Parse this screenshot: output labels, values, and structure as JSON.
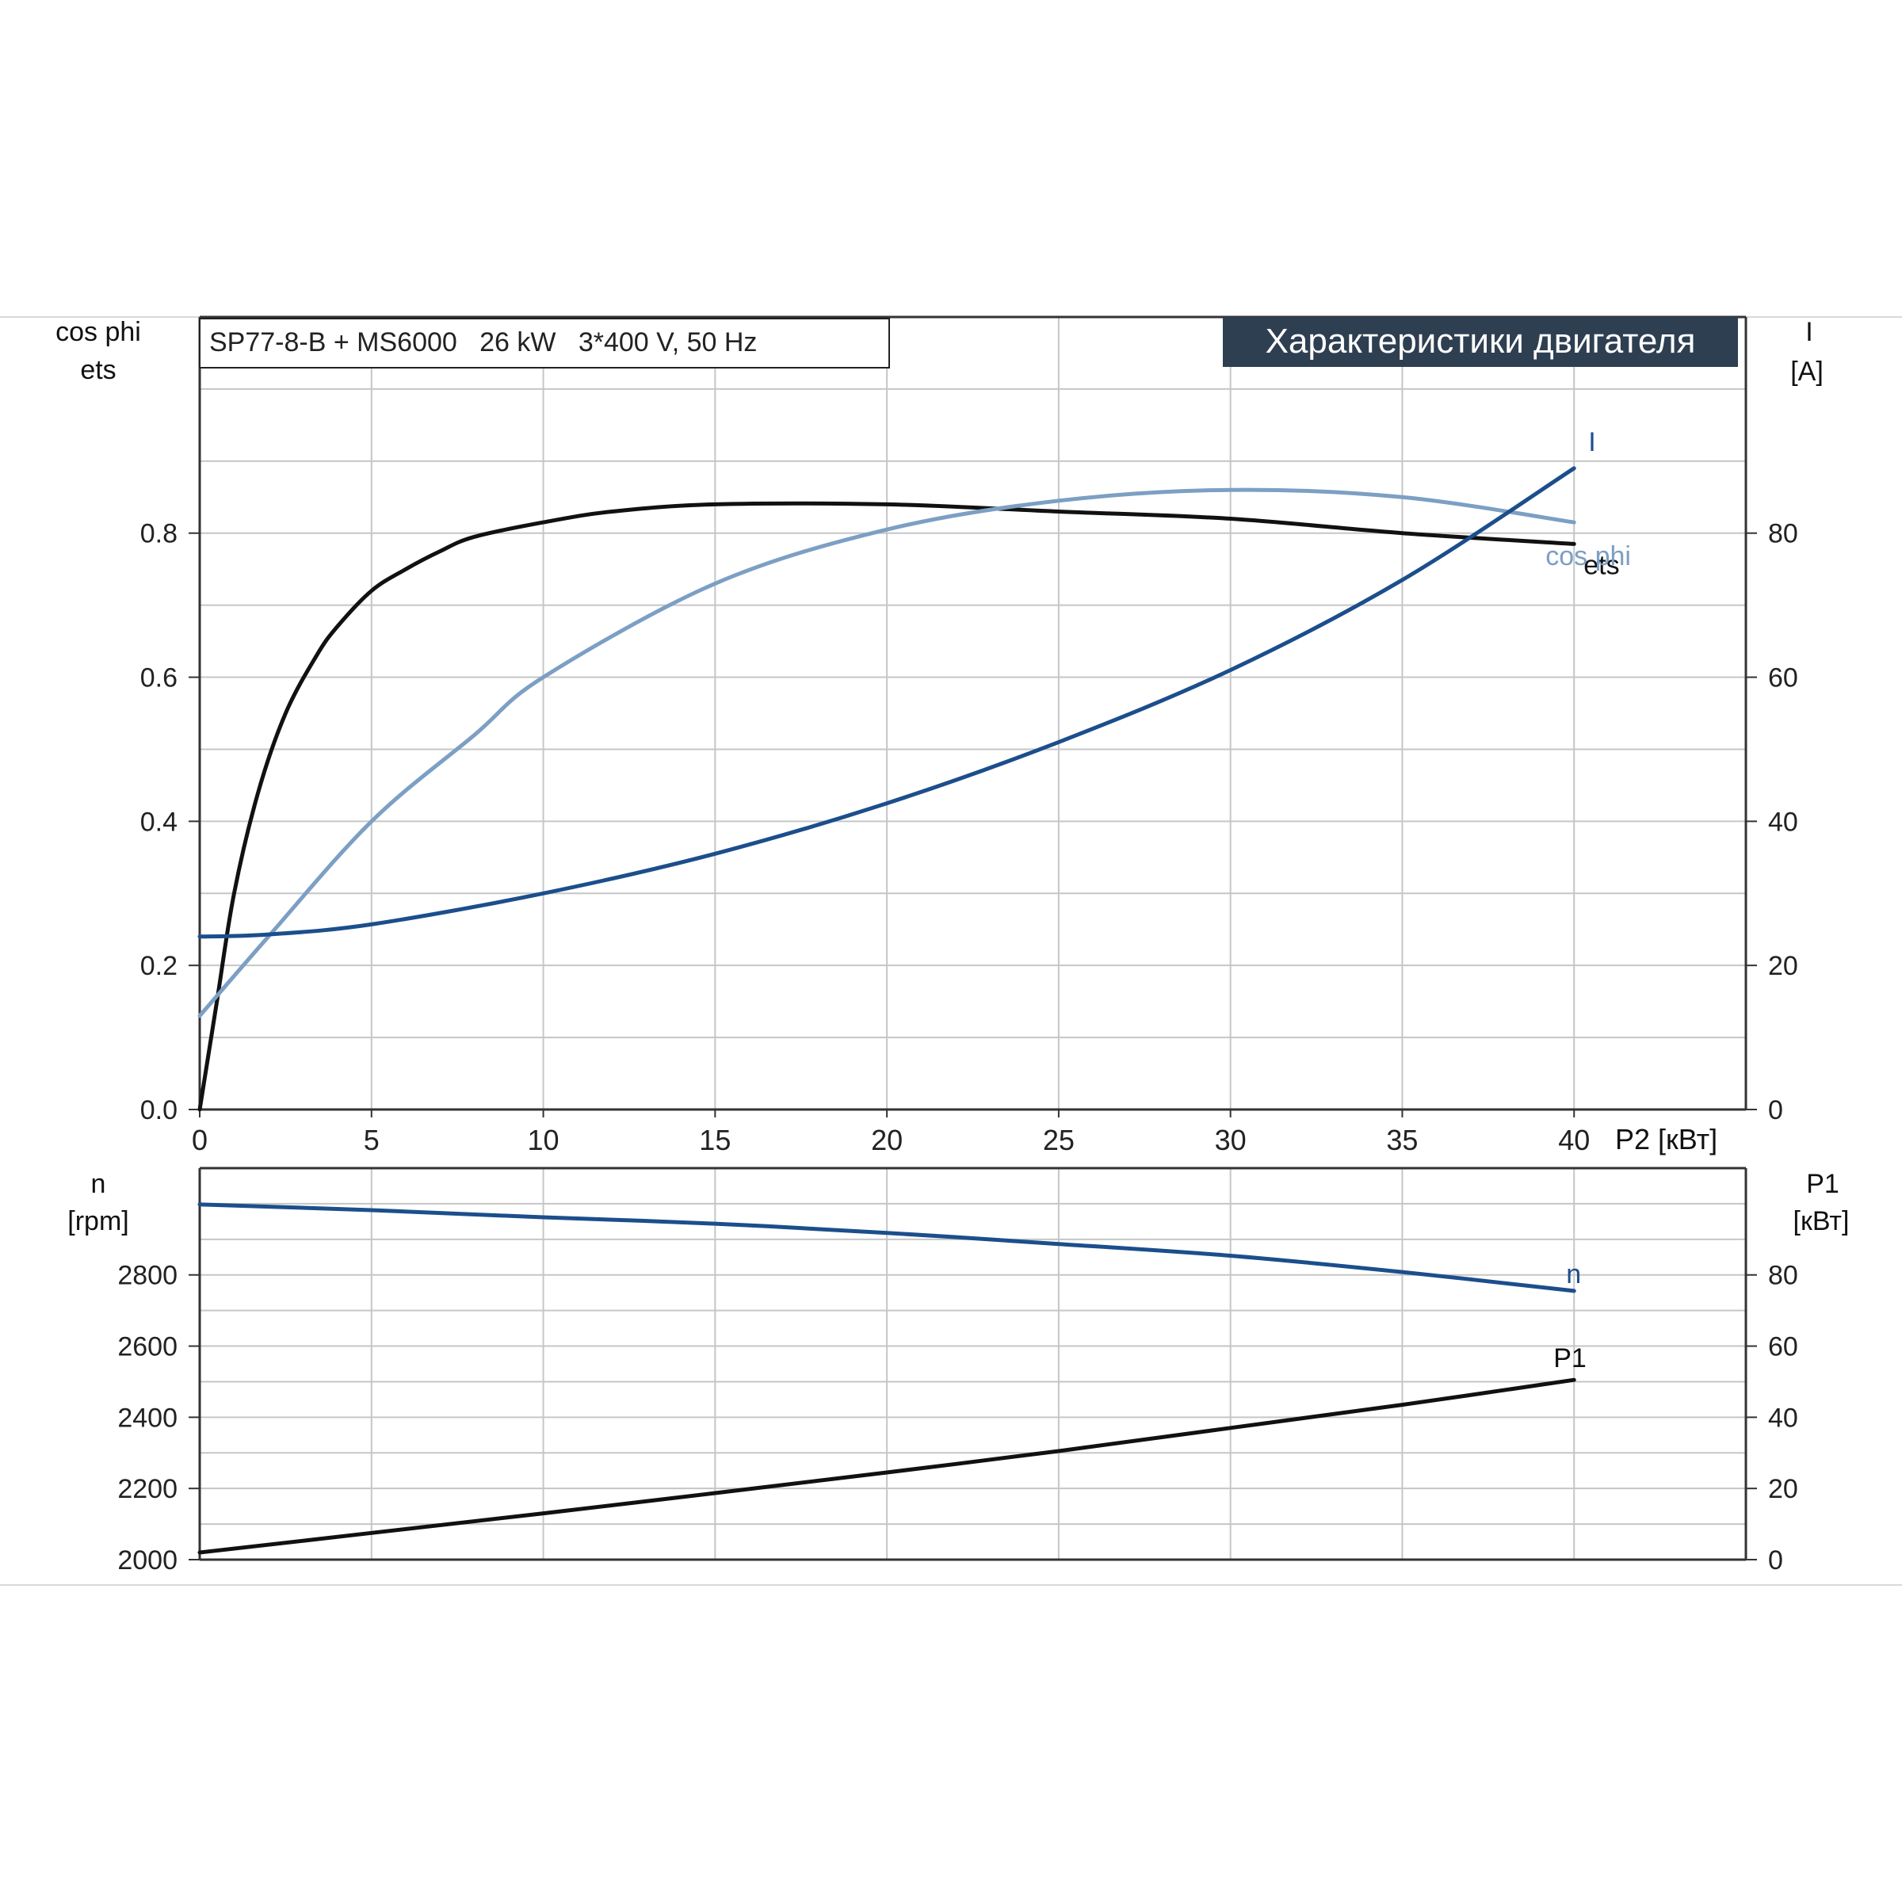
{
  "chart_data": [
    {
      "type": "line",
      "subtitle": "SP77-8-B + MS6000   26 kW   3*400 V, 50 Hz",
      "title": "Характеристики двигателя",
      "xlabel": "P2 [кВт]",
      "ylabel_left": [
        "cos phi",
        "ets"
      ],
      "ylabel_right": [
        "I",
        "[A]"
      ],
      "xlim": [
        0,
        45
      ],
      "ylim_left": [
        0,
        1.1
      ],
      "ylim_right": [
        0,
        110
      ],
      "x_ticks": [
        "0",
        "5",
        "10",
        "15",
        "20",
        "25",
        "30",
        "35",
        "40"
      ],
      "y_ticks_left": [
        "0.0",
        "0.2",
        "0.4",
        "0.6",
        "0.8"
      ],
      "y_ticks_right": [
        "0",
        "20",
        "40",
        "60",
        "80"
      ],
      "grid": true,
      "series": [
        {
          "name": "ets",
          "axis": "left",
          "color": "#111111",
          "x": [
            0,
            0.5,
            1,
            1.7,
            2.5,
            3.4,
            4,
            5,
            6,
            7,
            8,
            10,
            12,
            15,
            20,
            25,
            30,
            35,
            40
          ],
          "y": [
            0.0,
            0.15,
            0.3,
            0.44,
            0.55,
            0.63,
            0.67,
            0.72,
            0.75,
            0.775,
            0.795,
            0.815,
            0.83,
            0.84,
            0.84,
            0.83,
            0.82,
            0.8,
            0.785
          ]
        },
        {
          "name": "cos phi",
          "axis": "left",
          "color": "#7c9fc4",
          "x": [
            0,
            2,
            5,
            8,
            10,
            15,
            20,
            25,
            30,
            35,
            40
          ],
          "y": [
            0.13,
            0.24,
            0.4,
            0.52,
            0.6,
            0.73,
            0.805,
            0.845,
            0.86,
            0.85,
            0.815
          ]
        },
        {
          "name": "I",
          "axis": "right",
          "color": "#1c4e8c",
          "x": [
            0,
            2,
            5,
            10,
            15,
            20,
            25,
            30,
            35,
            40
          ],
          "y": [
            24,
            24.3,
            25.7,
            30,
            35.5,
            42.5,
            51,
            61,
            73.5,
            89
          ]
        }
      ]
    },
    {
      "type": "line",
      "ylabel_left": [
        "n",
        "[rpm]"
      ],
      "ylabel_right": [
        "P1",
        "[кВт]"
      ],
      "xlim": [
        0,
        45
      ],
      "ylim_left": [
        2000,
        3100
      ],
      "ylim_right": [
        0,
        110
      ],
      "y_ticks_left": [
        "2000",
        "2200",
        "2400",
        "2600",
        "2800"
      ],
      "y_ticks_right": [
        "0",
        "20",
        "40",
        "60",
        "80"
      ],
      "grid": true,
      "series": [
        {
          "name": "n",
          "axis": "left",
          "color": "#1c4e8c",
          "x": [
            0,
            5,
            10,
            15,
            20,
            25,
            30,
            35,
            40
          ],
          "y": [
            2998,
            2982,
            2962,
            2944,
            2918,
            2887,
            2854,
            2808,
            2755
          ]
        },
        {
          "name": "P1",
          "axis": "right",
          "color": "#111111",
          "x": [
            0,
            5,
            10,
            15,
            20,
            25,
            30,
            35,
            40
          ],
          "y": [
            2,
            7.5,
            13,
            18.7,
            24.5,
            30.5,
            37,
            43.5,
            50.5
          ]
        }
      ]
    }
  ]
}
